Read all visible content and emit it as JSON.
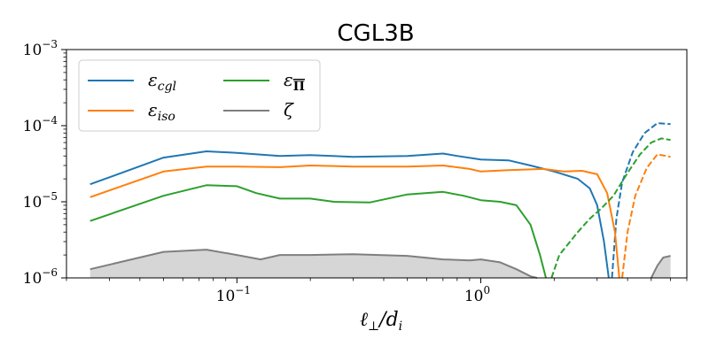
{
  "chart_data": {
    "type": "line",
    "title": "CGL3B",
    "xlabel": "ℓ⊥/di",
    "ylabel": "",
    "xscale": "log",
    "yscale": "log",
    "xlim": [
      0.02,
      7.0
    ],
    "ylim": [
      1e-06,
      0.001
    ],
    "grid": false,
    "legend_position": "top-left",
    "x_ticks": [
      {
        "value": 0.1,
        "base": "10",
        "exp": "−1"
      },
      {
        "value": 1.0,
        "base": "10",
        "exp": "0"
      }
    ],
    "y_ticks": [
      {
        "value": 1e-06,
        "base": "10",
        "exp": "−6"
      },
      {
        "value": 1e-05,
        "base": "10",
        "exp": "−5"
      },
      {
        "value": 0.0001,
        "base": "10",
        "exp": "−4"
      },
      {
        "value": 0.001,
        "base": "10",
        "exp": "−3"
      }
    ],
    "series": [
      {
        "name": "εcgl",
        "label_base": "ε",
        "label_sub": "cgl",
        "color": "#1f77b4",
        "solid": [
          [
            0.025,
            1.7e-05
          ],
          [
            0.05,
            3.8e-05
          ],
          [
            0.075,
            4.6e-05
          ],
          [
            0.1,
            4.4e-05
          ],
          [
            0.15,
            4e-05
          ],
          [
            0.2,
            4.1e-05
          ],
          [
            0.3,
            3.9e-05
          ],
          [
            0.5,
            4e-05
          ],
          [
            0.7,
            4.3e-05
          ],
          [
            0.8,
            4e-05
          ],
          [
            1.0,
            3.6e-05
          ],
          [
            1.3,
            3.5e-05
          ],
          [
            1.6,
            3e-05
          ],
          [
            2.0,
            2.5e-05
          ],
          [
            2.5,
            2e-05
          ],
          [
            2.8,
            1.5e-05
          ],
          [
            3.0,
            9e-06
          ],
          [
            3.2,
            3e-06
          ],
          [
            3.35,
            1e-06
          ]
        ],
        "dashed": [
          [
            3.45,
            1e-06
          ],
          [
            3.6,
            6e-06
          ],
          [
            3.8,
            1.8e-05
          ],
          [
            4.2,
            4.5e-05
          ],
          [
            4.7,
            8e-05
          ],
          [
            5.3,
            0.000108
          ],
          [
            6.0,
            0.000105
          ]
        ]
      },
      {
        "name": "εiso",
        "label_base": "ε",
        "label_sub": "iso",
        "color": "#ff7f0e",
        "solid": [
          [
            0.025,
            1.15e-05
          ],
          [
            0.05,
            2.5e-05
          ],
          [
            0.075,
            2.9e-05
          ],
          [
            0.1,
            2.9e-05
          ],
          [
            0.15,
            2.85e-05
          ],
          [
            0.2,
            3e-05
          ],
          [
            0.3,
            2.9e-05
          ],
          [
            0.5,
            2.9e-05
          ],
          [
            0.7,
            3e-05
          ],
          [
            0.9,
            2.7e-05
          ],
          [
            1.0,
            2.5e-05
          ],
          [
            1.3,
            2.6e-05
          ],
          [
            1.8,
            2.7e-05
          ],
          [
            2.2,
            2.5e-05
          ],
          [
            2.6,
            2.55e-05
          ],
          [
            3.0,
            2.3e-05
          ],
          [
            3.3,
            1.3e-05
          ],
          [
            3.55,
            4e-06
          ],
          [
            3.7,
            1e-06
          ]
        ],
        "dashed": [
          [
            3.8,
            1e-06
          ],
          [
            4.0,
            4e-06
          ],
          [
            4.3,
            1.2e-05
          ],
          [
            4.8,
            2.8e-05
          ],
          [
            5.3,
            4.2e-05
          ],
          [
            6.0,
            3.9e-05
          ]
        ]
      },
      {
        "name": "εΠ",
        "label_base": "ε",
        "label_sub": "Π",
        "label_sub_overline": true,
        "color": "#2ca02c",
        "solid": [
          [
            0.025,
            5.6e-06
          ],
          [
            0.05,
            1.2e-05
          ],
          [
            0.075,
            1.65e-05
          ],
          [
            0.1,
            1.6e-05
          ],
          [
            0.12,
            1.3e-05
          ],
          [
            0.15,
            1.1e-05
          ],
          [
            0.2,
            1.1e-05
          ],
          [
            0.25,
            1e-05
          ],
          [
            0.35,
            9.8e-06
          ],
          [
            0.5,
            1.25e-05
          ],
          [
            0.7,
            1.35e-05
          ],
          [
            0.85,
            1.2e-05
          ],
          [
            1.0,
            1.05e-05
          ],
          [
            1.2,
            1e-05
          ],
          [
            1.4,
            9e-06
          ],
          [
            1.6,
            5e-06
          ],
          [
            1.75,
            2e-06
          ],
          [
            1.85,
            1e-06
          ]
        ],
        "dashed": [
          [
            1.95,
            1e-06
          ],
          [
            2.1,
            2e-06
          ],
          [
            2.5,
            4e-06
          ],
          [
            2.8,
            6e-06
          ],
          [
            3.1,
            8e-06
          ],
          [
            3.5,
            1.2e-05
          ],
          [
            4.0,
            2.4e-05
          ],
          [
            4.5,
            4.2e-05
          ],
          [
            5.0,
            6e-05
          ],
          [
            5.5,
            6.8e-05
          ],
          [
            6.0,
            6.5e-05
          ]
        ]
      },
      {
        "name": "ζ",
        "label_base": "ζ",
        "label_sub": "",
        "color": "#7f7f7f",
        "fill": "#d6d6d6",
        "solid": [
          [
            0.025,
            1.3e-06
          ],
          [
            0.05,
            2.2e-06
          ],
          [
            0.075,
            2.35e-06
          ],
          [
            0.1,
            2e-06
          ],
          [
            0.125,
            1.75e-06
          ],
          [
            0.15,
            2e-06
          ],
          [
            0.2,
            2e-06
          ],
          [
            0.3,
            2.05e-06
          ],
          [
            0.5,
            1.95e-06
          ],
          [
            0.7,
            1.75e-06
          ],
          [
            0.9,
            1.7e-06
          ],
          [
            1.0,
            1.75e-06
          ],
          [
            1.2,
            1.6e-06
          ],
          [
            1.4,
            1.3e-06
          ],
          [
            1.6,
            1.05e-06
          ],
          [
            1.7,
            1e-06
          ]
        ],
        "segment2": [
          [
            5.0,
            1e-06
          ],
          [
            5.3,
            1.45e-06
          ],
          [
            5.6,
            1.85e-06
          ],
          [
            6.0,
            1.95e-06
          ]
        ]
      }
    ]
  }
}
